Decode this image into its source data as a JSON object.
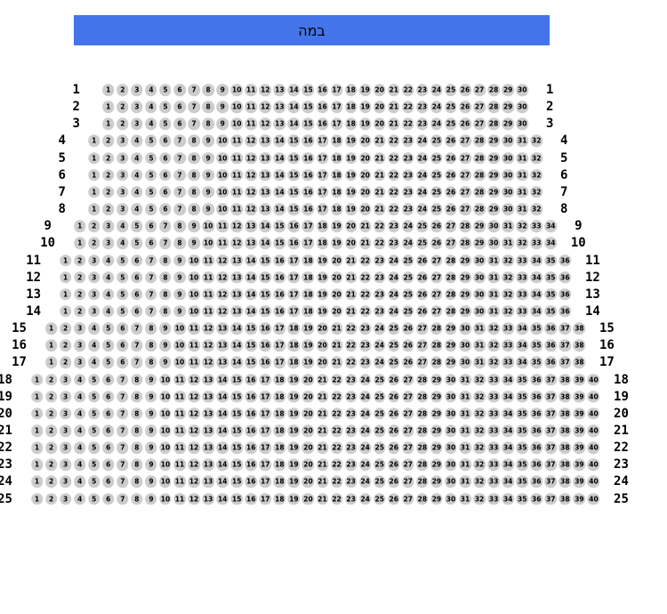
{
  "stage": {
    "label": "במה"
  },
  "colors": {
    "stage": "#4374e9",
    "seat_fill": "#cccccc",
    "seat_text": "#000000",
    "row_label_text": "#000000"
  },
  "seat_map": {
    "rows": [
      {
        "row": "1",
        "seat_count": 30,
        "left_label": "1",
        "right_label": "1"
      },
      {
        "row": "2",
        "seat_count": 30,
        "left_label": "2",
        "right_label": "2"
      },
      {
        "row": "3",
        "seat_count": 30,
        "left_label": "3",
        "right_label": "3"
      },
      {
        "row": "4",
        "seat_count": 32,
        "left_label": "4",
        "right_label": "4"
      },
      {
        "row": "5",
        "seat_count": 32,
        "left_label": "5",
        "right_label": "5"
      },
      {
        "row": "6",
        "seat_count": 32,
        "left_label": "6",
        "right_label": "6"
      },
      {
        "row": "7",
        "seat_count": 32,
        "left_label": "7",
        "right_label": "7"
      },
      {
        "row": "8",
        "seat_count": 32,
        "left_label": "8",
        "right_label": "8"
      },
      {
        "row": "9",
        "seat_count": 34,
        "left_label": "9",
        "right_label": "9"
      },
      {
        "row": "10",
        "seat_count": 34,
        "left_label": "10",
        "right_label": "10"
      },
      {
        "row": "11",
        "seat_count": 36,
        "left_label": "11",
        "right_label": "11"
      },
      {
        "row": "12",
        "seat_count": 36,
        "left_label": "12",
        "right_label": "12"
      },
      {
        "row": "13",
        "seat_count": 36,
        "left_label": "13",
        "right_label": "13"
      },
      {
        "row": "14",
        "seat_count": 36,
        "left_label": "14",
        "right_label": "14"
      },
      {
        "row": "15",
        "seat_count": 38,
        "left_label": "15",
        "right_label": "15"
      },
      {
        "row": "16",
        "seat_count": 38,
        "left_label": "16",
        "right_label": "16"
      },
      {
        "row": "17",
        "seat_count": 38,
        "left_label": "17",
        "right_label": "17"
      },
      {
        "row": "18",
        "seat_count": 40,
        "left_label": "18",
        "right_label": "18"
      },
      {
        "row": "19",
        "seat_count": 40,
        "left_label": "19",
        "right_label": "19"
      },
      {
        "row": "20",
        "seat_count": 40,
        "left_label": "20",
        "right_label": "20"
      },
      {
        "row": "21",
        "seat_count": 40,
        "left_label": "21",
        "right_label": "21"
      },
      {
        "row": "22",
        "seat_count": 40,
        "left_label": "22",
        "right_label": "22"
      },
      {
        "row": "23",
        "seat_count": 40,
        "left_label": "23",
        "right_label": "23"
      },
      {
        "row": "24",
        "seat_count": 40,
        "left_label": "24",
        "right_label": "24"
      },
      {
        "row": "25",
        "seat_count": 40,
        "left_label": "25",
        "right_label": "25"
      }
    ]
  }
}
